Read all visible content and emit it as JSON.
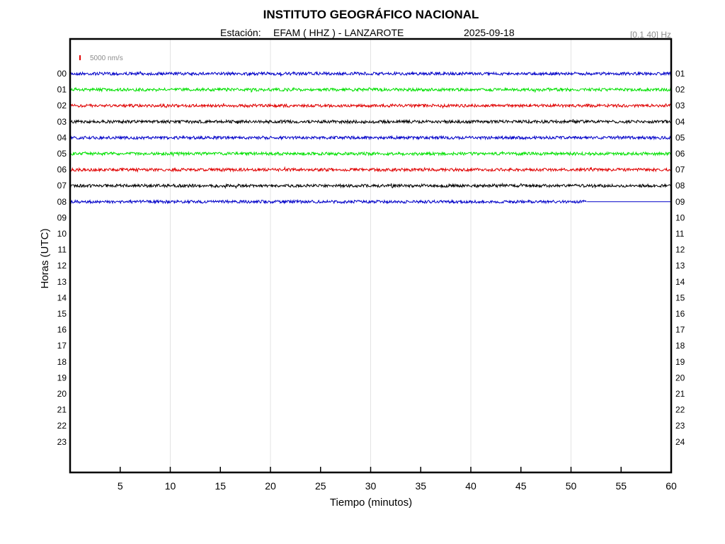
{
  "header": {
    "title": "INSTITUTO GEOGRÁFICO NACIONAL",
    "station_prefix": "Estación:",
    "station": "EFAM ( HHZ ) - LANZAROTE",
    "date": "2025-09-18",
    "frequency_band": "[0.1 40] Hz"
  },
  "chart_data": {
    "type": "line",
    "subtype": "helicorder",
    "title": "INSTITUTO GEOGRÁFICO NACIONAL",
    "xlabel": "Tiempo (minutos)",
    "ylabel": "Horas (UTC)",
    "xlim": [
      0,
      60
    ],
    "x_ticks": [
      "5",
      "10",
      "15",
      "20",
      "25",
      "30",
      "35",
      "40",
      "45",
      "50",
      "55",
      "60"
    ],
    "x_tick_values": [
      5,
      10,
      15,
      20,
      25,
      30,
      35,
      40,
      45,
      50,
      55,
      60
    ],
    "left_ticks": [
      "00",
      "01",
      "02",
      "03",
      "04",
      "05",
      "06",
      "07",
      "08",
      "09",
      "10",
      "11",
      "12",
      "13",
      "14",
      "15",
      "16",
      "17",
      "18",
      "19",
      "20",
      "21",
      "22",
      "23"
    ],
    "right_ticks": [
      "01",
      "02",
      "03",
      "04",
      "05",
      "06",
      "07",
      "08",
      "09",
      "10",
      "11",
      "12",
      "13",
      "14",
      "15",
      "16",
      "17",
      "18",
      "19",
      "20",
      "21",
      "22",
      "23",
      "24"
    ],
    "grid": "vertical",
    "scale_bar": {
      "label": "5000 nm/s",
      "color": "#e00000"
    },
    "trace_colors": [
      "#0000c8",
      "#00e000",
      "#e00000",
      "#000000"
    ],
    "series": [
      {
        "hour": "00",
        "end_minute": 60,
        "color": "#0000c8"
      },
      {
        "hour": "01",
        "end_minute": 60,
        "color": "#00e000"
      },
      {
        "hour": "02",
        "end_minute": 60,
        "color": "#e00000"
      },
      {
        "hour": "03",
        "end_minute": 60,
        "color": "#000000"
      },
      {
        "hour": "04",
        "end_minute": 60,
        "color": "#0000c8"
      },
      {
        "hour": "05",
        "end_minute": 60,
        "color": "#00e000"
      },
      {
        "hour": "06",
        "end_minute": 60,
        "color": "#e00000"
      },
      {
        "hour": "07",
        "end_minute": 60,
        "color": "#000000"
      },
      {
        "hour": "08",
        "end_minute": 51.6,
        "color": "#0000c8"
      }
    ],
    "gap_line": {
      "hour": "08",
      "from_minute": 51.6,
      "to_minute": 60,
      "color": "#0000c8"
    }
  }
}
